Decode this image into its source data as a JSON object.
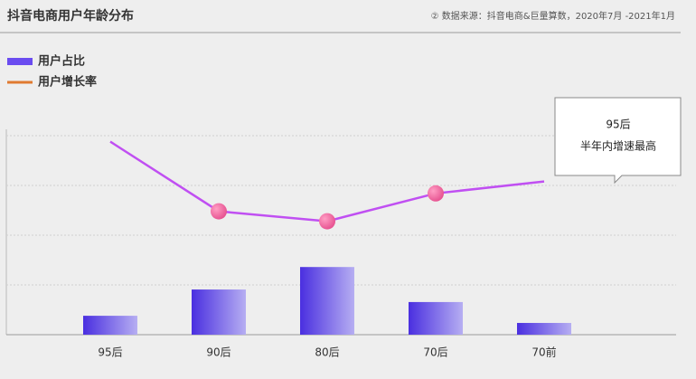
{
  "chart_data": {
    "type": "bar_line",
    "title": "抖音电商用户年龄分布",
    "source": "② 数据来源：抖音电商&巨量算数，2020年7月 -2021年1月",
    "categories": [
      "95后",
      "90后",
      "80后",
      "70后",
      "70前"
    ],
    "series": [
      {
        "name": "用户占比",
        "type": "bar",
        "color": "#6a4cf0",
        "values": [
          9.5,
          22.7,
          34,
          16.4,
          5.9
        ]
      },
      {
        "name": "用户增长率",
        "type": "line",
        "color": "#c04ff2",
        "legend_color": "#e07a30",
        "values": [
          97,
          62,
          57,
          71,
          77
        ]
      }
    ],
    "annotation": {
      "lines": [
        "95后",
        "半年内增速最高"
      ]
    },
    "ylim": [
      0,
      100
    ],
    "yticks": [
      25,
      50,
      75,
      100
    ],
    "grid": true
  }
}
